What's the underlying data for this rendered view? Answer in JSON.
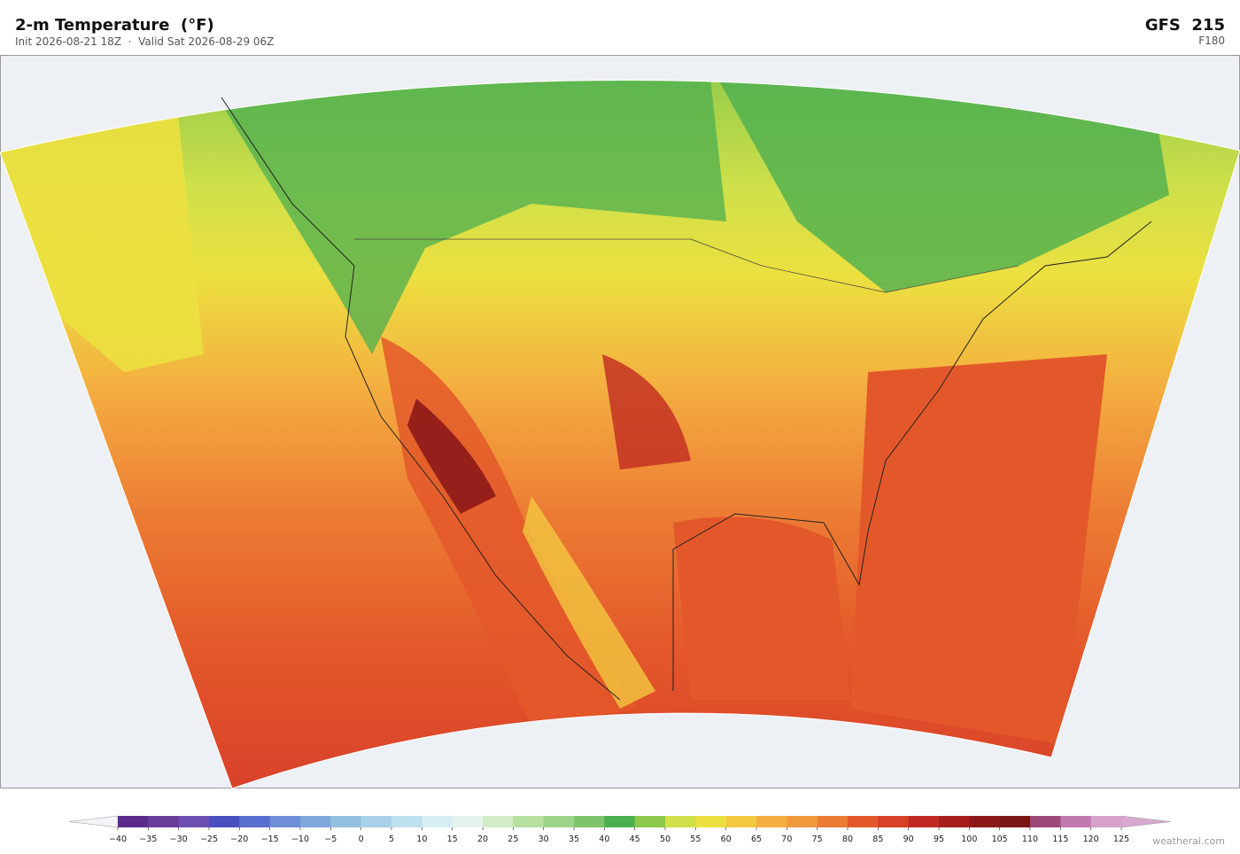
{
  "header": {
    "title": "2-m Temperature  (°F)",
    "subtitle": "Init 2026-08-21 18Z  ·  Valid Sat 2026-08-29 06Z",
    "model": "GFS  215",
    "forecast_hour": "F180"
  },
  "colorbar": {
    "ticks": [
      {
        "value": -40,
        "label": "−40"
      },
      {
        "value": -35,
        "label": "−35"
      },
      {
        "value": -30,
        "label": "−30"
      },
      {
        "value": -25,
        "label": "−25"
      },
      {
        "value": -20,
        "label": "−20"
      },
      {
        "value": -15,
        "label": "−15"
      },
      {
        "value": -10,
        "label": "−10"
      },
      {
        "value": -5,
        "label": "−5"
      },
      0,
      5,
      10,
      15,
      20,
      25,
      30,
      35,
      40,
      45,
      50,
      55,
      60,
      65,
      70,
      75,
      80,
      85,
      90,
      95,
      100,
      105,
      110,
      115,
      120,
      125
    ],
    "colors": [
      "#5b2a8c",
      "#6a3d9a",
      "#6f4fb0",
      "#4a4fc0",
      "#5a6fd0",
      "#6f8fd8",
      "#80a8dc",
      "#93bfe0",
      "#a8d0e8",
      "#bfe0ee",
      "#d6eef2",
      "#e6f4ee",
      "#d2ecc8",
      "#b8e0a0",
      "#9ed48a",
      "#7ec46c",
      "#4caf50",
      "#8cc84b",
      "#cfe04a",
      "#ece040",
      "#f3c840",
      "#f4ae40",
      "#f09a3c",
      "#ec7c34",
      "#e3582a",
      "#d8402a",
      "#c02a22",
      "#a81e1e",
      "#8c1818",
      "#7a1616",
      "#9c4a7a",
      "#c07ab0",
      "#d8a0cc"
    ],
    "under_color": "#f4f4f8",
    "over_color": "#d8a8d0"
  },
  "watermark": "weatherai.com"
}
